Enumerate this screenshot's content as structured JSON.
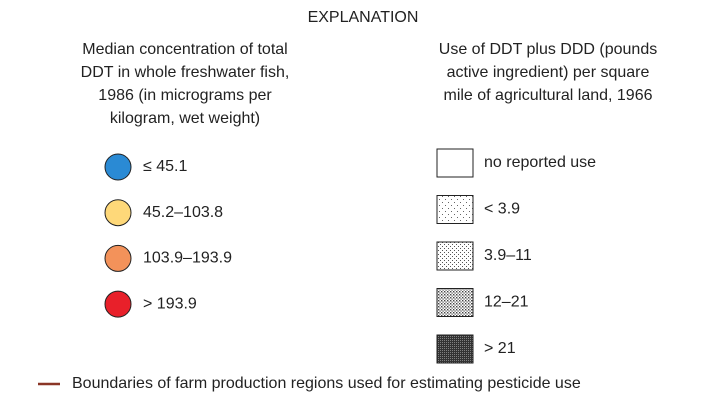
{
  "title": "EXPLANATION",
  "left": {
    "heading": [
      "Median concentration of total",
      "DDT in whole freshwater fish,",
      "1986 (in micrograms per",
      "kilogram, wet weight)"
    ],
    "items": [
      {
        "label": "≤ 45.1",
        "color": "#2a8ad4"
      },
      {
        "label": "45.2–103.8",
        "color": "#fed879"
      },
      {
        "label": "103.9–193.9",
        "color": "#f3925a"
      },
      {
        "label": "> 193.9",
        "color": "#e8202a"
      }
    ]
  },
  "right": {
    "heading": [
      "Use of DDT plus DDD (pounds",
      "active ingredient) per square",
      "mile of agricultural land, 1966"
    ],
    "items": [
      {
        "label": "no reported use"
      },
      {
        "label": "< 3.9"
      },
      {
        "label": "3.9–11"
      },
      {
        "label": "12–21"
      },
      {
        "label": "> 21"
      }
    ]
  },
  "boundary": {
    "label": "Boundaries of farm production regions used for estimating pesticide use",
    "color": "#8a3526"
  }
}
